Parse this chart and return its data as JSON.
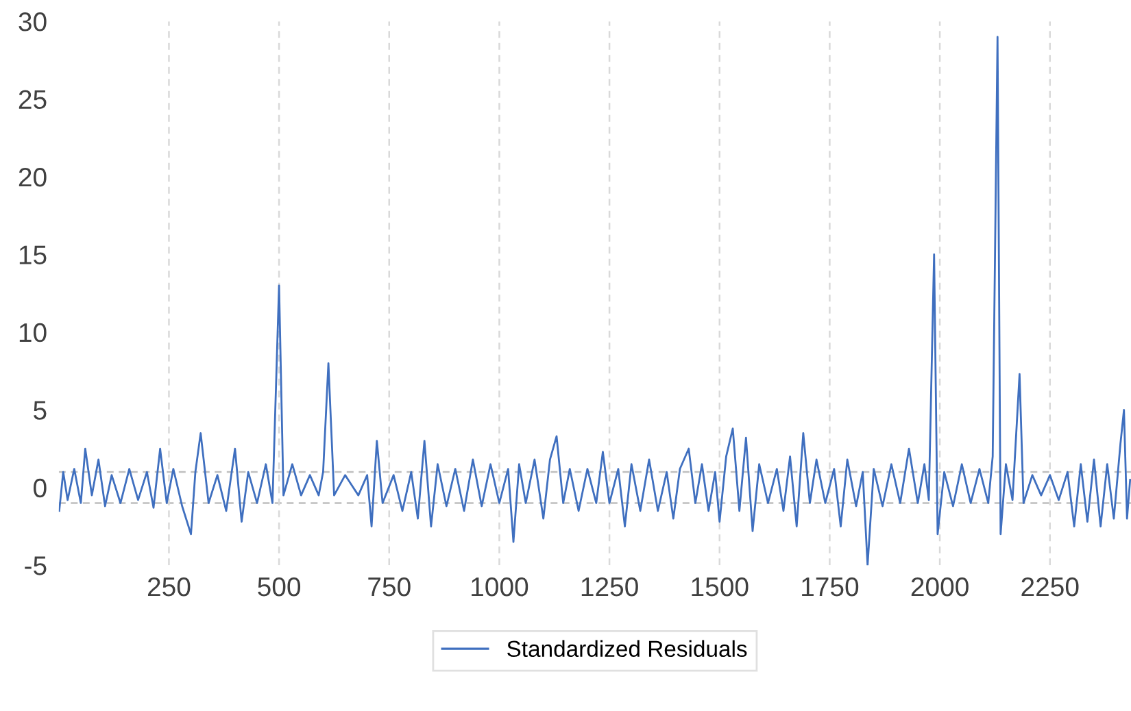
{
  "chart_data": {
    "type": "line",
    "series": [
      {
        "name": "Standardized Residuals",
        "color": "#3f6fbf",
        "x": [
          1,
          10,
          20,
          35,
          50,
          60,
          75,
          90,
          105,
          120,
          140,
          160,
          180,
          200,
          215,
          230,
          245,
          260,
          280,
          300,
          310,
          322,
          340,
          360,
          380,
          400,
          415,
          430,
          450,
          470,
          485,
          500,
          510,
          530,
          550,
          570,
          590,
          600,
          612,
          625,
          650,
          680,
          700,
          710,
          722,
          735,
          760,
          780,
          800,
          815,
          830,
          845,
          860,
          880,
          900,
          920,
          940,
          960,
          980,
          1000,
          1020,
          1032,
          1045,
          1060,
          1080,
          1100,
          1115,
          1130,
          1145,
          1160,
          1180,
          1200,
          1220,
          1235,
          1250,
          1270,
          1285,
          1300,
          1320,
          1340,
          1360,
          1380,
          1395,
          1410,
          1430,
          1445,
          1460,
          1475,
          1490,
          1500,
          1515,
          1530,
          1545,
          1560,
          1575,
          1590,
          1610,
          1630,
          1645,
          1660,
          1675,
          1690,
          1705,
          1720,
          1740,
          1760,
          1775,
          1790,
          1810,
          1825,
          1836,
          1850,
          1870,
          1890,
          1910,
          1930,
          1950,
          1965,
          1975,
          1987,
          1995,
          2010,
          2030,
          2050,
          2070,
          2090,
          2110,
          2120,
          2131,
          2138,
          2150,
          2165,
          2181,
          2190,
          2210,
          2230,
          2250,
          2270,
          2290,
          2305,
          2320,
          2335,
          2350,
          2365,
          2380,
          2395,
          2410,
          2418,
          2425,
          2432
        ],
        "values": [
          -1.5,
          1.0,
          -0.8,
          1.2,
          -1.0,
          2.5,
          -0.5,
          1.8,
          -1.2,
          0.8,
          -1.0,
          1.2,
          -0.8,
          1.0,
          -1.3,
          2.5,
          -1.0,
          1.2,
          -1.2,
          -3.0,
          1.0,
          3.5,
          -1.0,
          0.8,
          -1.5,
          2.5,
          -2.2,
          1.0,
          -1.0,
          1.5,
          -1.0,
          13.0,
          -0.5,
          1.5,
          -0.5,
          0.8,
          -0.5,
          1.0,
          8.0,
          -0.5,
          0.8,
          -0.5,
          0.8,
          -2.5,
          3.0,
          -1.0,
          0.8,
          -1.5,
          1.0,
          -2.0,
          3.0,
          -2.5,
          1.5,
          -1.2,
          1.2,
          -1.5,
          1.8,
          -1.2,
          1.5,
          -1.0,
          1.2,
          -3.5,
          1.5,
          -1.0,
          1.8,
          -2.0,
          1.8,
          3.3,
          -1.0,
          1.2,
          -1.5,
          1.2,
          -1.0,
          2.3,
          -1.0,
          1.2,
          -2.5,
          1.5,
          -1.5,
          1.8,
          -1.5,
          1.0,
          -2.0,
          1.2,
          2.5,
          -1.0,
          1.5,
          -1.5,
          1.0,
          -2.2,
          2.0,
          3.8,
          -1.5,
          3.2,
          -2.8,
          1.5,
          -1.0,
          1.2,
          -1.5,
          2.0,
          -2.5,
          3.5,
          -1.0,
          1.8,
          -1.0,
          1.2,
          -2.5,
          1.8,
          -1.2,
          1.0,
          -5.0,
          1.2,
          -1.2,
          1.5,
          -1.0,
          2.5,
          -1.0,
          1.5,
          -0.8,
          15.0,
          -3.0,
          1.0,
          -1.2,
          1.5,
          -1.0,
          1.2,
          -1.0,
          2.0,
          29.0,
          -3.0,
          1.5,
          -0.8,
          7.3,
          -1.0,
          0.8,
          -0.5,
          0.8,
          -0.8,
          1.0,
          -2.5,
          1.5,
          -2.2,
          1.8,
          -2.5,
          1.5,
          -2.0,
          2.8,
          5.0,
          -2.0,
          0.5
        ]
      }
    ],
    "xlim": [
      0,
      2434
    ],
    "ylim": [
      -5,
      30
    ],
    "xticks": [
      250,
      500,
      750,
      1000,
      1250,
      1500,
      1750,
      2000,
      2250
    ],
    "yticks": [
      -5,
      0,
      5,
      10,
      15,
      20,
      25,
      30
    ],
    "grid": "x",
    "legend": "bottom",
    "line_style": "solid",
    "marker": "none",
    "ref_lines": [
      {
        "axis": "y",
        "value": 1,
        "color": "#bfbfbf",
        "line_style": "dashed"
      },
      {
        "axis": "y",
        "value": -1,
        "color": "#bfbfbf",
        "line_style": "dashed"
      }
    ]
  }
}
